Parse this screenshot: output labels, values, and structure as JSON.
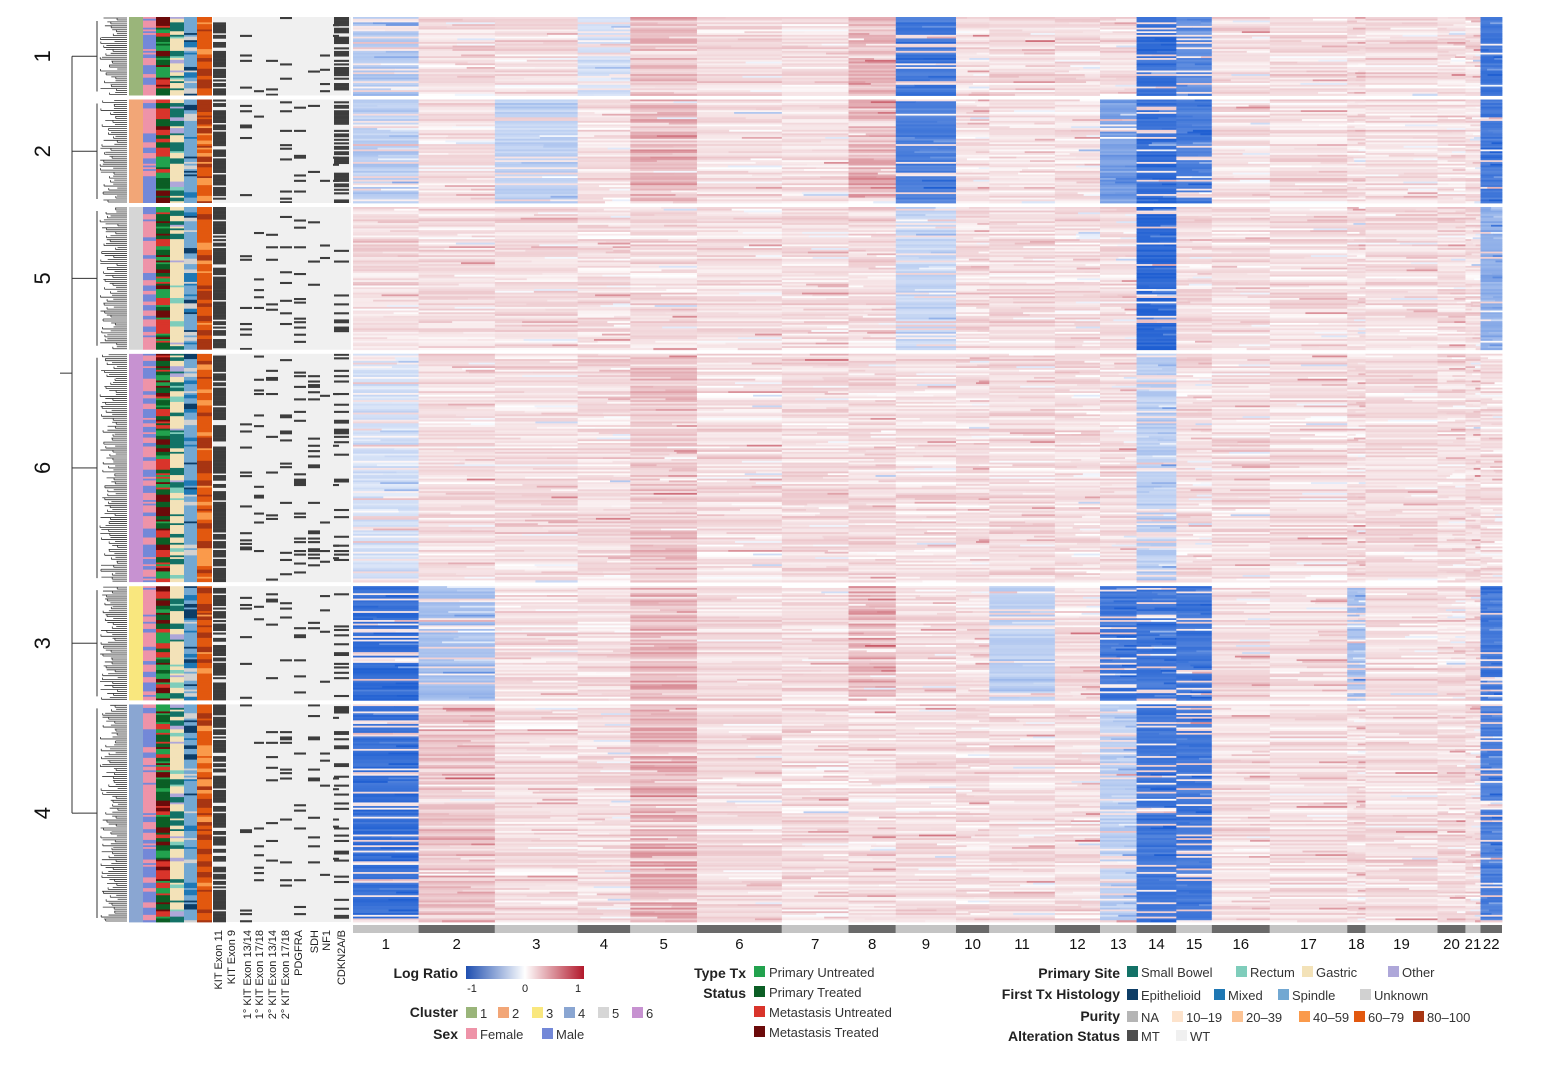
{
  "chart_data": {
    "type": "heatmap",
    "title": "",
    "clusters": [
      {
        "label": "1",
        "rows": 44
      },
      {
        "label": "2",
        "rows": 58
      },
      {
        "label": "5",
        "rows": 80
      },
      {
        "label": "6",
        "rows": 128
      },
      {
        "label": "3",
        "rows": 64
      },
      {
        "label": "4",
        "rows": 122
      }
    ],
    "cluster_profiles": [
      {
        "label": "1",
        "loss": {
          "9": -0.85,
          "14": -0.9,
          "15": -0.7,
          "22": -0.85,
          "1": -0.35,
          "4": -0.2
        },
        "gain": {
          "8": 0.3,
          "5": 0.25
        }
      },
      {
        "label": "2",
        "loss": {
          "9": -0.8,
          "13": -0.6,
          "14": -0.9,
          "15": -0.8,
          "22": -0.85,
          "3": -0.3,
          "1": -0.3
        },
        "gain": {
          "5": 0.3,
          "8": 0.35
        }
      },
      {
        "label": "5",
        "loss": {
          "14": -0.95,
          "22": -0.5,
          "9": -0.25
        },
        "gain": {}
      },
      {
        "label": "6",
        "loss": {
          "14": -0.3,
          "1": -0.2
        },
        "gain": {
          "5": 0.15
        }
      },
      {
        "label": "3",
        "loss": {
          "1": -0.9,
          "13": -0.85,
          "14": -0.85,
          "15": -0.85,
          "22": -0.85,
          "2": -0.4,
          "18": -0.4,
          "11": -0.3
        },
        "gain": {
          "5": 0.3,
          "8": 0.3
        }
      },
      {
        "label": "4",
        "loss": {
          "1": -0.9,
          "14": -0.85,
          "15": -0.85,
          "22": -0.8,
          "13": -0.3
        },
        "gain": {
          "5": 0.35,
          "2": 0.2
        }
      }
    ],
    "chromosomes": [
      "1",
      "2",
      "3",
      "4",
      "5",
      "6",
      "7",
      "8",
      "9",
      "10",
      "11",
      "12",
      "13",
      "14",
      "15",
      "16",
      "17",
      "18",
      "19",
      "20",
      "21",
      "22"
    ],
    "chromosome_labels": [
      "1",
      "2",
      "3",
      "4",
      "5",
      "6",
      "7",
      "8",
      "9",
      "10",
      "11",
      "12",
      "13",
      "14",
      "15",
      "16",
      "17",
      "18",
      "19",
      "20",
      "21",
      "22"
    ],
    "chromosome_widths": [
      61,
      71,
      77,
      49,
      62,
      79,
      62,
      44,
      56,
      31,
      61,
      42,
      34,
      37,
      33,
      54,
      72,
      17,
      67,
      26,
      14,
      20
    ],
    "value_range": [
      -1,
      1
    ],
    "mutation_columns": [
      "KIT Exon 11",
      "KIT Exon 9",
      "1° KIT Exon 13/14",
      "1° KIT Exon 17/18",
      "2° KIT Exon 13/14",
      "2° KIT Exon 17/18",
      "PDGFRA",
      "SDH",
      "NF1",
      "CDKN2A/B"
    ],
    "annotation_tracks": [
      "Cluster",
      "Sex",
      "Type Tx Status",
      "Primary Site",
      "First Tx Histology",
      "Purity"
    ],
    "legend": {
      "log_ratio": {
        "title": "Log Ratio",
        "ticks": [
          "-1",
          "0",
          "1"
        ]
      },
      "cluster": {
        "title": "Cluster",
        "items": [
          {
            "label": "1",
            "color": "#9ab57a"
          },
          {
            "label": "2",
            "color": "#f2a677"
          },
          {
            "label": "3",
            "color": "#f9e77e"
          },
          {
            "label": "4",
            "color": "#8aa6d2"
          },
          {
            "label": "5",
            "color": "#d6d6d6"
          },
          {
            "label": "6",
            "color": "#c792d1"
          }
        ]
      },
      "sex": {
        "title": "Sex",
        "items": [
          {
            "label": "Female",
            "color": "#ee93a8"
          },
          {
            "label": "Male",
            "color": "#7388d8"
          }
        ]
      },
      "type_tx": {
        "title_line1": "Type Tx",
        "title_line2": "Status",
        "items": [
          {
            "label": "Primary Untreated",
            "color": "#22a24e"
          },
          {
            "label": "Primary Treated",
            "color": "#0b5e25"
          },
          {
            "label": "Metastasis Untreated",
            "color": "#d9342b"
          },
          {
            "label": "Metastasis Treated",
            "color": "#6b0a0a"
          }
        ]
      },
      "primary_site": {
        "title": "Primary Site",
        "items": [
          {
            "label": "Small Bowel",
            "color": "#137267"
          },
          {
            "label": "Rectum",
            "color": "#7fcdbb"
          },
          {
            "label": "Gastric",
            "color": "#f3e2b8"
          },
          {
            "label": "Other",
            "color": "#aea7d9"
          }
        ]
      },
      "histology": {
        "title": "First Tx Histology",
        "items": [
          {
            "label": "Epithelioid",
            "color": "#0d3d66"
          },
          {
            "label": "Mixed",
            "color": "#1f78b4"
          },
          {
            "label": "Spindle",
            "color": "#72a8d2"
          },
          {
            "label": "Unknown",
            "color": "#d1d1d1"
          }
        ]
      },
      "purity": {
        "title": "Purity",
        "items": [
          {
            "label": "NA",
            "color": "#b5b5b5"
          },
          {
            "label": "10–19",
            "color": "#fde3cc"
          },
          {
            "label": "20–39",
            "color": "#fcc394"
          },
          {
            "label": "40–59",
            "color": "#fa9a4b"
          },
          {
            "label": "60–79",
            "color": "#e2580f"
          },
          {
            "label": "80–100",
            "color": "#a73512"
          }
        ]
      },
      "alteration": {
        "title": "Alteration Status",
        "items": [
          {
            "label": "MT",
            "color": "#4d4d4d"
          },
          {
            "label": "WT",
            "color": "#f0f0f0"
          }
        ]
      }
    }
  }
}
